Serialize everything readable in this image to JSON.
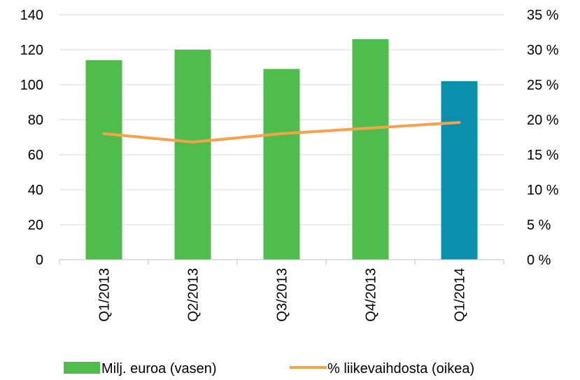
{
  "chart_data": {
    "type": "bar",
    "categories": [
      "Q1/2013",
      "Q2/2013",
      "Q3/2013",
      "Q4/2013",
      "Q1/2014"
    ],
    "series": [
      {
        "name": "Milj. euroa (vasen)",
        "type": "bar",
        "axis": "left",
        "values": [
          114,
          120,
          109,
          126,
          102
        ],
        "colors": [
          "#4fbd4b",
          "#4fbd4b",
          "#4fbd4b",
          "#4fbd4b",
          "#0a8fad"
        ]
      },
      {
        "name": "% liikevaihdosta (oikea)",
        "type": "line",
        "axis": "right",
        "values": [
          18.0,
          16.8,
          18.0,
          18.8,
          19.6
        ],
        "color": "#f7a24a"
      }
    ],
    "y_left": {
      "ylim": [
        0,
        140
      ],
      "ticks": [
        0,
        20,
        40,
        60,
        80,
        100,
        120,
        140
      ],
      "tick_labels": [
        "0",
        "20",
        "40",
        "60",
        "80",
        "100",
        "120",
        "140"
      ]
    },
    "y_right": {
      "ylim": [
        0,
        35
      ],
      "ticks": [
        0,
        5,
        10,
        15,
        20,
        25,
        30,
        35
      ],
      "tick_labels": [
        "0 %",
        "5 %",
        "10 %",
        "15 %",
        "20 %",
        "25 %",
        "30 %",
        "35 %"
      ]
    },
    "title": "",
    "xlabel": "",
    "ylabel": "",
    "grid": true,
    "legend": "bottom"
  }
}
